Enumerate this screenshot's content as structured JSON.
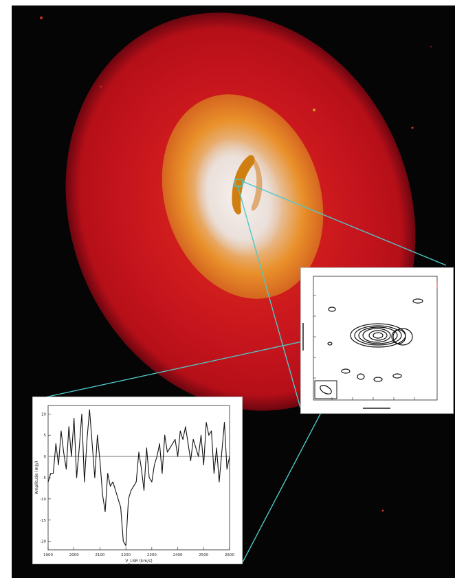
{
  "image": {
    "subject": "galaxy",
    "background_color": "#050505",
    "galaxy_colors": {
      "outer_halo": "#c4141d",
      "mid_ring": "#e9902a",
      "inner_core": "#efe7e4",
      "dust_lane": "#c9780e"
    },
    "callout_line_color": "#4fc8c8"
  },
  "contour_inset": {
    "type": "radio contour map",
    "contour_color": "#111111",
    "beam_box": true
  },
  "spectrum_inset": {
    "type": "line",
    "line_color": "#111111",
    "zero_line_color": "#9a9a9a",
    "xlabel": "V_LSR (km/s)",
    "ylabel": "Amplitude (mJy)",
    "x_ticks": [
      "1900",
      "2000",
      "2100",
      "2200",
      "2300",
      "2400",
      "2500",
      "2600"
    ],
    "y_ticks": [
      "10",
      "5",
      "0",
      "-5",
      "-10",
      "-15",
      "-20"
    ]
  },
  "chart_data": {
    "type": "line",
    "title": "",
    "xlabel": "V_LSR (km/s)",
    "ylabel": "Amplitude (mJy)",
    "xlim": [
      1900,
      2600
    ],
    "ylim": [
      -22,
      12
    ],
    "grid": false,
    "series": [
      {
        "name": "",
        "x": [
          1900,
          1910,
          1920,
          1930,
          1940,
          1950,
          1960,
          1970,
          1980,
          1990,
          2000,
          2010,
          2020,
          2030,
          2040,
          2050,
          2060,
          2070,
          2080,
          2090,
          2100,
          2110,
          2120,
          2130,
          2140,
          2150,
          2160,
          2170,
          2180,
          2190,
          2200,
          2210,
          2220,
          2230,
          2240,
          2250,
          2260,
          2270,
          2280,
          2290,
          2300,
          2310,
          2320,
          2330,
          2340,
          2350,
          2360,
          2370,
          2380,
          2390,
          2400,
          2410,
          2420,
          2430,
          2440,
          2450,
          2460,
          2470,
          2480,
          2490,
          2500,
          2510,
          2520,
          2530,
          2540,
          2550,
          2560,
          2570,
          2580,
          2590,
          2600
        ],
        "y": [
          -6,
          -4,
          -4,
          3,
          -2,
          6,
          1,
          -3,
          7,
          0,
          9,
          -5,
          2,
          10,
          -6,
          4,
          11,
          3,
          -5,
          5,
          -1,
          -9,
          -13,
          -4,
          -7,
          -6,
          -8,
          -10,
          -12,
          -20,
          -21,
          -10,
          -8,
          -7,
          -6,
          1,
          -3,
          -8,
          2,
          -5,
          -6,
          -2,
          0,
          3,
          -4,
          5,
          1,
          2,
          3,
          4,
          0,
          6,
          4,
          7,
          3,
          -1,
          4,
          2,
          0,
          5,
          -2,
          8,
          5,
          6,
          -4,
          2,
          -6,
          1,
          8,
          -3,
          0
        ]
      }
    ]
  }
}
